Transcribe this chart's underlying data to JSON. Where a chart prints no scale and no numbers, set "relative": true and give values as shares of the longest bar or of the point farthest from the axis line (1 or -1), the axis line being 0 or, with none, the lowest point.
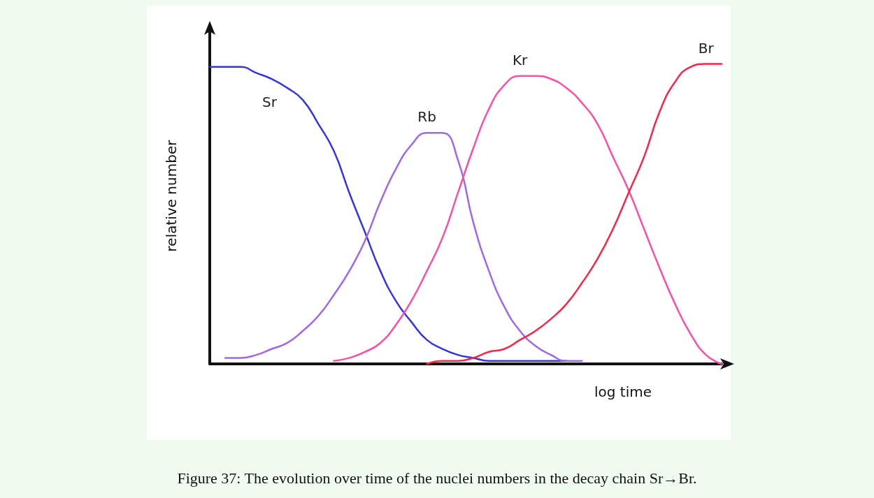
{
  "chart_data": {
    "type": "line",
    "relative": true,
    "xlabel": "log time",
    "ylabel": "relative number",
    "annotations": [
      "Figure 37: The evolution over time of the nuclei numbers in the decay chain Sr→Br."
    ],
    "categories": [
      null,
      null,
      null,
      null,
      null,
      null,
      null,
      null,
      null,
      null,
      null,
      null,
      null,
      null,
      null,
      null,
      null,
      null,
      null,
      null,
      null,
      null,
      null,
      null,
      null,
      null,
      null,
      null,
      null,
      null,
      null,
      null,
      null,
      null
    ],
    "marker": "none",
    "grid": false,
    "legend": false,
    "series": [
      {
        "name": "Sr",
        "color": "#3333ee",
        "values": [
          0.99,
          0.99,
          0.99,
          0.97,
          0.95,
          0.92,
          0.88,
          0.8,
          0.71,
          0.57,
          0.44,
          0.31,
          0.21,
          0.14,
          0.08,
          0.05,
          0.03,
          0.02,
          0.01,
          0.01,
          0.01,
          0.01,
          0.01,
          0.01,
          null,
          null,
          null,
          null,
          null,
          null,
          null,
          null,
          null,
          null
        ]
      },
      {
        "name": "Rb",
        "color": "#a066f0",
        "values": [
          null,
          0.02,
          0.02,
          0.03,
          0.05,
          0.07,
          0.11,
          0.16,
          0.23,
          0.31,
          0.41,
          0.54,
          0.65,
          0.73,
          0.77,
          0.77,
          0.68,
          0.47,
          0.31,
          0.19,
          0.11,
          0.06,
          0.03,
          0.01,
          0.01,
          null,
          null,
          null,
          null,
          null,
          null,
          null,
          null,
          null
        ]
      },
      {
        "name": "Kr",
        "color": "#ff4da6",
        "values": [
          null,
          null,
          null,
          null,
          null,
          null,
          null,
          null,
          0.01,
          0.02,
          0.04,
          0.07,
          0.13,
          0.21,
          0.31,
          0.42,
          0.57,
          0.72,
          0.85,
          0.93,
          0.96,
          0.96,
          0.95,
          0.92,
          0.87,
          0.8,
          0.69,
          0.58,
          0.45,
          0.32,
          0.2,
          0.1,
          0.03,
          0
        ]
      },
      {
        "name": "Br",
        "color": "#ff2244",
        "values": [
          null,
          null,
          null,
          null,
          null,
          null,
          null,
          null,
          null,
          null,
          null,
          null,
          null,
          null,
          0,
          0.01,
          0.01,
          0.02,
          0.04,
          0.05,
          0.08,
          0.11,
          0.15,
          0.2,
          0.27,
          0.35,
          0.45,
          0.57,
          0.69,
          0.84,
          0.94,
          0.99,
          1,
          1
        ]
      }
    ]
  }
}
